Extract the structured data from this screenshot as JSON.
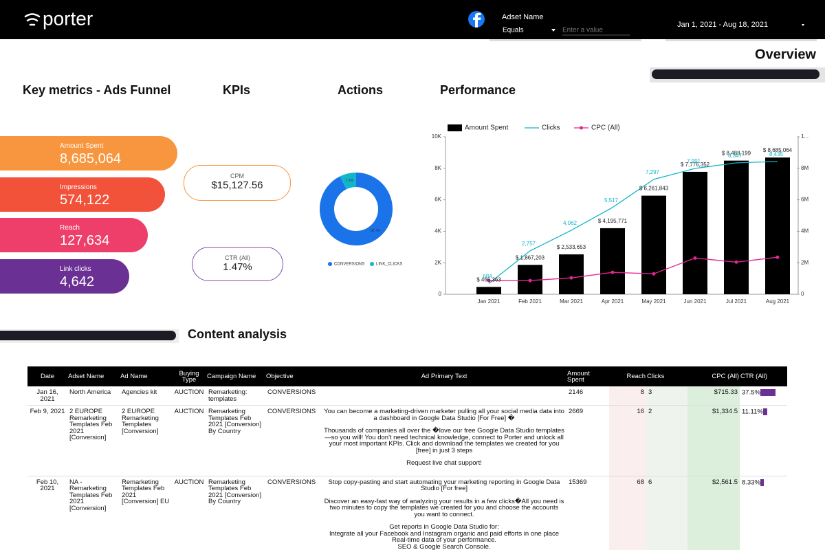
{
  "header": {
    "logo": "porter",
    "filter_label": "Adset Name",
    "filter_operator": "Equals",
    "filter_placeholder": "Enter a value",
    "date_range": "Jan 1, 2021 - Aug 18, 2021"
  },
  "page_title": "Overview",
  "sections": {
    "funnel": "Key metrics - Ads Funnel",
    "kpis": "KPIs",
    "actions": "Actions",
    "performance": "Performance",
    "content": "Content analysis"
  },
  "funnel": [
    {
      "label": "Amount Spent",
      "value": "8,685,064",
      "color": "#f7963f"
    },
    {
      "label": "Impressions",
      "value": "574,122",
      "color": "#f2513a"
    },
    {
      "label": "Reach",
      "value": "127,634",
      "color": "#ee3f6a"
    },
    {
      "label": "Link clicks",
      "value": "4,642",
      "color": "#6a3093"
    }
  ],
  "kpis": [
    {
      "label": "CPM",
      "value": "$15,127.56",
      "color": "#f7963f"
    },
    {
      "label": "CTR (All)",
      "value": "1.47%",
      "color": "#7b4fa8"
    }
  ],
  "chart_data": [
    {
      "type": "donut",
      "categories": [
        "CONVERSIONS",
        "LINK_CLICKS"
      ],
      "values": [
        92.7,
        7.3
      ],
      "value_labels": [
        "92.7%",
        "7.3%"
      ],
      "colors": [
        "#1a73e8",
        "#12b5cb"
      ]
    },
    {
      "type": "combo",
      "categories": [
        "Jan 2021",
        "Feb 2021",
        "Mar 2021",
        "Apr 2021",
        "May 2021",
        "Jun 2021",
        "Jul 2021",
        "Aug 2021"
      ],
      "series": [
        {
          "name": "Amount Spent",
          "type": "bar",
          "axis": "y2",
          "color": "#000000",
          "values": [
            466363,
            1867203,
            2533653,
            4195771,
            6261843,
            7776352,
            8488199,
            8685064
          ],
          "value_labels": [
            "$ 466,363",
            "$ 1,867,203",
            "$ 2,533,653",
            "$ 4,195,771",
            "$ 6,261,843",
            "$ 7,776,352",
            "$ 8,488,199",
            "$ 8,685,064"
          ]
        },
        {
          "name": "Clicks",
          "type": "line",
          "color": "#12b5cb",
          "values": [
            684,
            2757,
            4062,
            5517,
            7297,
            7991,
            8347,
            8435
          ],
          "value_labels": [
            "684",
            "2,757",
            "4,062",
            "5,517",
            "7,297",
            "7,991",
            "8,347",
            "8,435"
          ]
        },
        {
          "name": "CPC (All)",
          "type": "line",
          "marker": true,
          "color": "#e52592",
          "values": [
            870,
            870,
            1040,
            1390,
            1300,
            2300,
            2040,
            2350
          ]
        }
      ],
      "ylim": [
        0,
        10000
      ],
      "yticks": [
        0,
        {
          "value": 2000,
          "label": "2K"
        },
        {
          "value": 4000,
          "label": "4K"
        },
        {
          "value": 6000,
          "label": "6K"
        },
        {
          "value": 8000,
          "label": "8K"
        },
        {
          "value": 10000,
          "label": "10K"
        }
      ],
      "y2lim": [
        0,
        10000000
      ],
      "y2ticks": [
        0,
        {
          "value": 2000000,
          "label": "2M"
        },
        {
          "value": 4000000,
          "label": "4M"
        },
        {
          "value": 6000000,
          "label": "6M"
        },
        {
          "value": 8000000,
          "label": "8M"
        },
        {
          "value": 10000000,
          "label": "1..."
        }
      ],
      "legend": "top"
    }
  ],
  "table": {
    "columns": [
      "Date",
      "Adset Name",
      "Ad Name",
      "Buying Type",
      "Campaign Name",
      "Objective",
      "Ad Primary Text",
      "Amount Spent",
      "Reach",
      "Clicks",
      "CPC (All)",
      "CTR (All)"
    ],
    "rows": [
      [
        "Jan 16, 2021",
        "North America",
        "Agencies kit",
        "AUCTION",
        "Remarketing: templates",
        "CONVERSIONS",
        null,
        "2146",
        "8",
        "3",
        "$715.33",
        "37.5%"
      ],
      [
        "Feb 9, 2021",
        "2 EUROPE Remarketing Templates Feb 2021 [Conversion]",
        "2 EUROPE Remarketing Templates [Conversion]",
        "AUCTION",
        "Remarketing Templates Feb 2021 [Conversion] By Country",
        "CONVERSIONS",
        [
          "You can become a marketing-driven marketer pulling all your social media data into a dashboard in Google Data Studio [For Free] �",
          "Thousands of companies all over the �love our free Google Data Studio templates—so you will! You don't need technical knowledge, connect to Porter and unlock all your most important KPIs. Click and download the templates we created for you [free] in just 3 steps",
          "Request live chat support!"
        ],
        "2669",
        "16",
        "2",
        "$1,334.5",
        "11.11%"
      ],
      [
        "Feb 10, 2021",
        "NA - Remarketing Templates Feb 2021 [Conversion]",
        "Remarketing Templates Feb 2021 [Conversion] EU",
        "AUCTION",
        "Remarketing Templates Feb 2021 [Conversion] By Country",
        "CONVERSIONS",
        [
          "Stop copy-pasting and start automating your marketing reporting in Google Data Studio [For free]",
          "Discover an easy-fast way of analyzing your results in a few clicks�All you need is two minutes to copy the templates we created for you and choose the accounts you want to connect.",
          "Get reports in Google Data Studio for:\n Integrate all your Facebook and Instagram organic and paid efforts in one place\n Real-time data of your performance.\n SEO & Google Search Console."
        ],
        "15369",
        "68",
        "6",
        "$2,561.5",
        "8.33%"
      ]
    ]
  }
}
